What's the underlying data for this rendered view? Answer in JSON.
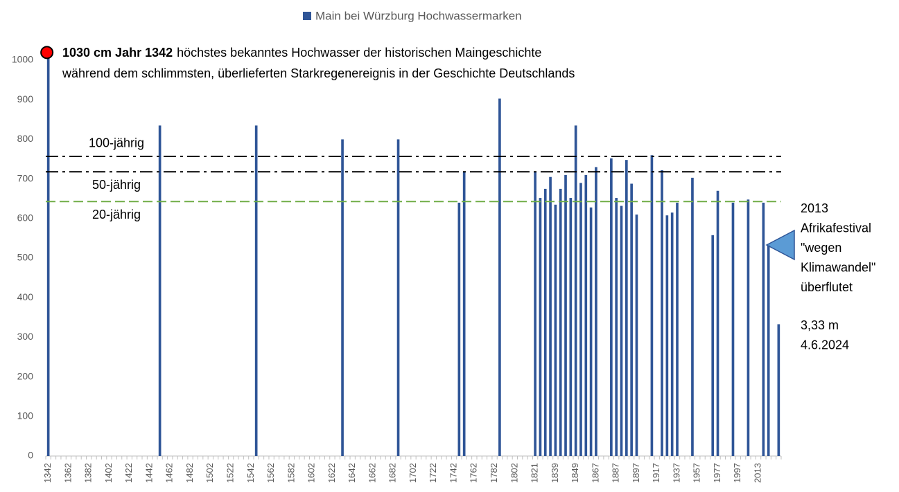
{
  "chart_data": {
    "type": "bar",
    "series": [
      {
        "name": "Main bei Würzburg Hochwassermarken",
        "color": "#2f5597",
        "values": [
          1030,
          null,
          null,
          null,
          null,
          null,
          null,
          null,
          null,
          null,
          null,
          null,
          null,
          null,
          null,
          null,
          null,
          null,
          null,
          null,
          null,
          null,
          835,
          null,
          null,
          null,
          null,
          null,
          null,
          null,
          null,
          null,
          null,
          null,
          null,
          null,
          null,
          null,
          null,
          null,
          null,
          835,
          null,
          null,
          null,
          null,
          null,
          null,
          null,
          null,
          null,
          null,
          null,
          null,
          null,
          null,
          null,
          null,
          800,
          null,
          null,
          null,
          null,
          null,
          null,
          null,
          null,
          null,
          null,
          800,
          null,
          null,
          null,
          null,
          null,
          null,
          null,
          null,
          null,
          null,
          null,
          640,
          718,
          null,
          null,
          null,
          null,
          null,
          null,
          903,
          null,
          null,
          null,
          null,
          null,
          null,
          718,
          652,
          675,
          705,
          635,
          675,
          710,
          652,
          835,
          690,
          710,
          628,
          730,
          null,
          null,
          752,
          652,
          632,
          748,
          688,
          610,
          null,
          null,
          760,
          null,
          722,
          608,
          615,
          640,
          null,
          null,
          703,
          null,
          null,
          null,
          558,
          670,
          null,
          null,
          640,
          null,
          null,
          648,
          null,
          null,
          640,
          532,
          null,
          333
        ]
      }
    ],
    "categories": [
      "1342",
      null,
      null,
      null,
      "1362",
      null,
      null,
      null,
      "1382",
      null,
      null,
      null,
      "1402",
      null,
      null,
      null,
      "1422",
      null,
      null,
      null,
      "1442",
      null,
      null,
      null,
      "1462",
      null,
      null,
      null,
      "1482",
      null,
      null,
      null,
      "1502",
      null,
      null,
      null,
      "1522",
      null,
      null,
      null,
      "1542",
      null,
      null,
      null,
      "1562",
      null,
      null,
      null,
      "1582",
      null,
      null,
      null,
      "1602",
      null,
      null,
      null,
      "1622",
      null,
      null,
      null,
      "1642",
      null,
      null,
      null,
      "1662",
      null,
      null,
      null,
      "1682",
      null,
      null,
      null,
      "1702",
      null,
      null,
      null,
      "1722",
      null,
      null,
      null,
      "1742",
      null,
      null,
      null,
      "1762",
      null,
      null,
      null,
      "1782",
      null,
      null,
      null,
      "1802",
      null,
      null,
      null,
      "1821",
      null,
      null,
      null,
      "1839",
      null,
      null,
      null,
      "1849",
      null,
      null,
      null,
      "1867",
      null,
      null,
      null,
      "1887",
      null,
      null,
      null,
      "1897",
      null,
      null,
      null,
      "1917",
      null,
      null,
      null,
      "1937",
      null,
      null,
      null,
      "1957",
      null,
      null,
      null,
      "1977",
      null,
      null,
      null,
      "1997",
      null,
      null,
      null,
      "2013",
      null,
      null,
      null,
      null
    ],
    "ylim": [
      0,
      1050
    ],
    "yticks": [
      0,
      100,
      200,
      300,
      400,
      500,
      600,
      700,
      800,
      900,
      1000
    ],
    "grid": false,
    "legend": "top",
    "reference_lines": [
      {
        "value": 757,
        "label": "100-jährig",
        "color": "#000000",
        "style": "dash-dot",
        "label_position": "above"
      },
      {
        "value": 718,
        "label": "50-jährig",
        "color": "#000000",
        "style": "dash-dot",
        "label_position": "below"
      },
      {
        "value": 643,
        "label": "20-jährig",
        "color": "#70ad47",
        "style": "dashed",
        "label_position": "below"
      }
    ],
    "annotation_top": {
      "bold": "1030 cm Jahr 1342",
      "text": "höchstes bekanntes Hochwasser der historischen Maingeschichte",
      "line2": "während dem schlimmsten, überlieferten Starkregenereignis in der Geschichte Deutschlands"
    },
    "annotation_right": [
      "2013",
      "Afrikafestival",
      "\"wegen",
      "Klimawandel\"",
      "überflutet"
    ],
    "annotation_latest": [
      "3,33 m",
      "4.6.2024"
    ]
  }
}
